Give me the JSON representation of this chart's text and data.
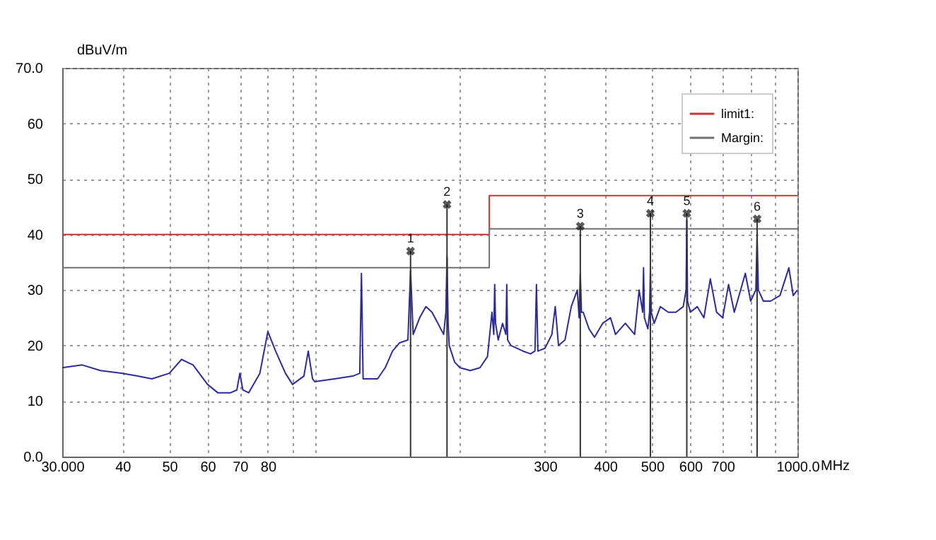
{
  "chart_data": {
    "type": "line",
    "xlabel": "MHz",
    "ylabel": "dBuV/m",
    "log": "x",
    "xlim": [
      30,
      1000
    ],
    "ylim": [
      0,
      70
    ],
    "xticks": [
      {
        "value": 30,
        "label": "30.000"
      },
      40,
      50,
      60,
      70,
      80,
      {
        "value": 90,
        "label": null
      },
      {
        "value": 100,
        "label": null
      },
      {
        "value": 200,
        "label": null
      },
      300,
      400,
      500,
      600,
      700,
      {
        "value": 800,
        "label": null
      },
      {
        "value": 900,
        "label": null
      },
      {
        "value": 1000,
        "label": "1000.0"
      }
    ],
    "yticks": [
      {
        "value": 0,
        "label": "0.0"
      },
      10,
      20,
      30,
      40,
      50,
      60,
      {
        "value": 70,
        "label": "70.0"
      }
    ],
    "grid": true,
    "legend": "top right",
    "line_style": "solid",
    "marker": "none",
    "series": [
      {
        "color": "#2b2b9c",
        "x": [
          30,
          33,
          36,
          40,
          43,
          46,
          50,
          53,
          56,
          60,
          63,
          67,
          69,
          70,
          71,
          73,
          77,
          80,
          83,
          87,
          90,
          95,
          97,
          99,
          100,
          110,
          120,
          124,
          125,
          126,
          130,
          135,
          140,
          145,
          150,
          156,
          158,
          160,
          165,
          170,
          175,
          180,
          185,
          187,
          188,
          189,
          190,
          195,
          200,
          210,
          220,
          228,
          233,
          235,
          236,
          237,
          240,
          245,
          249,
          250,
          251,
          255,
          270,
          280,
          286,
          288,
          290,
          300,
          310,
          315,
          320,
          330,
          340,
          350,
          353,
          355,
          357,
          360,
          370,
          380,
          395,
          410,
          420,
          440,
          460,
          470,
          478,
          480,
          482,
          490,
          494,
          496,
          498,
          505,
          520,
          540,
          560,
          580,
          588,
          590,
          592,
          600,
          620,
          640,
          660,
          680,
          700,
          720,
          740,
          780,
          800,
          820,
          825,
          830,
          850,
          880,
          920,
          960,
          980,
          1000
        ],
        "values": [
          16,
          16.5,
          15.5,
          15,
          14.5,
          14,
          15,
          17.5,
          16.5,
          13,
          11.5,
          11.5,
          12,
          15,
          12,
          11.5,
          15,
          22.5,
          19,
          15,
          13,
          14.5,
          19,
          14,
          13.5,
          14,
          14.5,
          15,
          33,
          14,
          14,
          14,
          16,
          19,
          20.5,
          21,
          33.5,
          22,
          25,
          27,
          26,
          24,
          22,
          26,
          36,
          24,
          20,
          17,
          16,
          15.5,
          16,
          18,
          26,
          22,
          31,
          24,
          21,
          24,
          22,
          31,
          21,
          20,
          19,
          18.5,
          19,
          31,
          19,
          19.5,
          22,
          27,
          20,
          21,
          27,
          30,
          25,
          33,
          26,
          26,
          23,
          21.5,
          24,
          25,
          22,
          24,
          22,
          30,
          26,
          34,
          25,
          23,
          26,
          34,
          26,
          24,
          27,
          26,
          26,
          27,
          30,
          42.5,
          28,
          26,
          27,
          25,
          32,
          26,
          25,
          31,
          26,
          33,
          28,
          30,
          40,
          30,
          28,
          28,
          29,
          34,
          29,
          30
        ]
      },
      {
        "name": "limit1:",
        "type": "line",
        "color": "#cc3333",
        "x": [
          30,
          230,
          230,
          1000
        ],
        "values": [
          40,
          40,
          47,
          47
        ]
      },
      {
        "name": "Margin:",
        "type": "line",
        "color": "#707070",
        "x": [
          30,
          230,
          230,
          1000
        ],
        "values": [
          34,
          34,
          41,
          41
        ]
      }
    ],
    "annotations": [
      {
        "text": "1",
        "x": 158,
        "y": 37
      },
      {
        "text": "2",
        "x": 188,
        "y": 45.4
      },
      {
        "text": "3",
        "x": 355,
        "y": 41.5
      },
      {
        "text": "4",
        "x": 496,
        "y": 43.8
      },
      {
        "text": "5",
        "x": 590,
        "y": 43.8
      },
      {
        "text": "6",
        "x": 825,
        "y": 42.8
      }
    ]
  }
}
